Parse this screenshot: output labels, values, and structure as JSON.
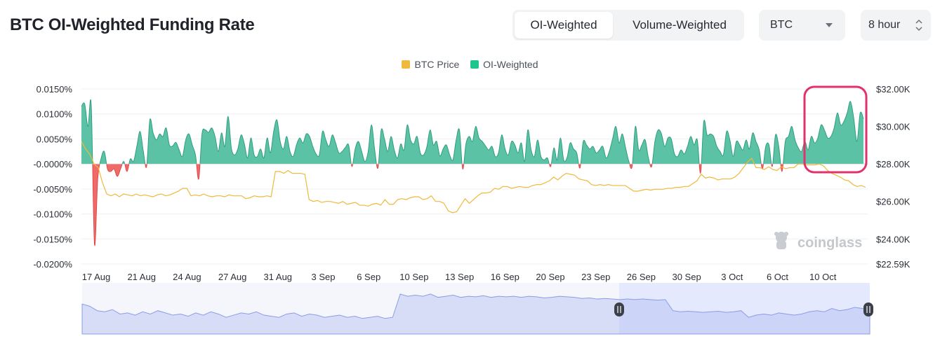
{
  "header": {
    "title": "BTC OI-Weighted Funding Rate",
    "tabs": [
      {
        "label": "OI-Weighted",
        "active": true
      },
      {
        "label": "Volume-Weighted",
        "active": false
      }
    ],
    "symbol_select": {
      "value": "BTC",
      "icon": "chevron-down-icon"
    },
    "interval_select": {
      "value": "8 hour",
      "icon": "up-down-stepper-icon"
    }
  },
  "legend": [
    {
      "label": "BTC Price",
      "color": "#f0b83c"
    },
    {
      "label": "OI-Weighted",
      "color": "#1dc78c"
    }
  ],
  "watermark": {
    "text": "coinglass",
    "icon": "coinglass-logo-icon"
  },
  "colors": {
    "positive_fill": "#5cc2a5",
    "positive_stroke": "#2f9e80",
    "negative_fill": "#f06a6a",
    "price_line": "#f0b83c",
    "highlight_box": "#e0336e",
    "navigator_fill": "#dde3fb",
    "navigator_line": "#8b9ce6"
  },
  "chart_data": {
    "type": "area",
    "xlabels": [
      "17 Aug",
      "21 Aug",
      "24 Aug",
      "27 Aug",
      "31 Aug",
      "3 Sep",
      "6 Sep",
      "10 Sep",
      "13 Sep",
      "16 Sep",
      "20 Sep",
      "23 Sep",
      "26 Sep",
      "30 Sep",
      "3 Oct",
      "6 Oct",
      "10 Oct"
    ],
    "y_left_ticks": [
      "0.0150%",
      "0.0100%",
      "0.0050%",
      "-0.0000%",
      "-0.0050%",
      "-0.0100%",
      "-0.0150%",
      "-0.0200%"
    ],
    "y_left_values": [
      0.015,
      0.01,
      0.005,
      0.0,
      -0.005,
      -0.01,
      -0.015,
      -0.02
    ],
    "y_right_ticks": [
      "$32.00K",
      "$30.00K",
      "$28.00K",
      "$26.00K",
      "$24.00K",
      "$22.59K"
    ],
    "y_right_values": [
      32000,
      30000,
      28000,
      26000,
      24000,
      22590
    ],
    "funding_series": {
      "name": "OI-Weighted",
      "values": [
        0.0115,
        0.012,
        0.0075,
        0.0118,
        -0.016,
        -0.003,
        0.001,
        0.0025,
        -0.001,
        -0.0015,
        -0.001,
        -0.0025,
        -0.001,
        0.0005,
        -0.0015,
        0.001,
        0.0005,
        0.0035,
        0.0065,
        0.0025,
        -0.0005,
        0.0088,
        0.0062,
        0.0048,
        0.006,
        0.0055,
        0.0072,
        0.0038,
        0.0036,
        0.0043,
        0.0028,
        0.0015,
        0.0048,
        0.006,
        0.0038,
        0.0018,
        -0.003,
        0.006,
        0.0068,
        0.0063,
        0.0072,
        0.0055,
        0.0025,
        0.0062,
        0.0035,
        0.0095,
        0.0032,
        0.0018,
        0.003,
        0.0058,
        0.004,
        0.0012,
        0.0052,
        0.0018,
        0.0015,
        0.003,
        0.0012,
        0.0052,
        0.0022,
        0.0065,
        0.0088,
        0.0045,
        0.003,
        0.0055,
        0.0025,
        0.0015,
        0.0038,
        0.0052,
        0.0042,
        0.006,
        0.0055,
        0.0035,
        0.002,
        0.0018,
        0.0065,
        0.0048,
        0.0035,
        0.0058,
        0.0042,
        0.0022,
        0.0025,
        0.0033,
        0.0038,
        -0.0005,
        0.003,
        0.0045,
        0.0025,
        0.0005,
        0.0025,
        0.0078,
        0.0028,
        -0.0008,
        0.0068,
        0.005,
        0.0025,
        0.0055,
        0.0028,
        0.0012,
        0.004,
        0.0028,
        0.0078,
        0.0048,
        0.004,
        0.0055,
        0.0022,
        0.0018,
        0.0034,
        0.0068,
        0.0038,
        0.0045,
        0.0016,
        0.003,
        0.0038,
        0.0018,
        0.0008,
        0.0048,
        0.0068,
        -0.001,
        0.004,
        0.0055,
        0.0045,
        0.0075,
        0.0052,
        0.0045,
        0.0036,
        0.0028,
        0.0035,
        0.0015,
        0.0022,
        0.0058,
        0.003,
        0.0018,
        0.0045,
        0.0038,
        0.0022,
        0.0042,
        0.0005,
        0.0068,
        0.0028,
        0.0015,
        0.0048,
        0.0015,
        0.0008,
        0.0012,
        -0.0005,
        0.0032,
        0.0008,
        0.0052,
        0.0008,
        0.0012,
        0.0042,
        0.003,
        0.0022,
        -0.0008,
        0.0045,
        0.0038,
        0.003,
        0.0035,
        0.0022,
        0.0028,
        0.0035,
        0.0012,
        0.0025,
        0.005,
        0.0075,
        0.0042,
        0.006,
        0.0032,
        0.0005,
        -0.0005,
        0.0075,
        0.0028,
        0.0038,
        0.0048,
        0.0012,
        -0.0005,
        0.0045,
        0.0068,
        0.006,
        0.0035,
        0.0052,
        0.005,
        0.002,
        0.0015,
        0.0028,
        0.002,
        0.0035,
        0.0055,
        0.0038,
        0.0048,
        -0.0018,
        0.0085,
        0.0058,
        0.006,
        0.0055,
        0.0035,
        0.0025,
        0.0018,
        0.0065,
        0.0048,
        0.0015,
        0.0045,
        0.0038,
        0.0028,
        0.0048,
        0.003,
        0.0062,
        0.0045,
        0.0028,
        -0.001,
        0.0035,
        0.0038,
        -0.0005,
        0.0058,
        0.0035,
        -0.0015,
        0.0045,
        0.0055,
        0.0075,
        0.0048,
        0.0032,
        0.0025,
        0.0045,
        0.0028,
        0.0055,
        0.0042,
        0.0052,
        0.0078,
        0.0068,
        0.0052,
        0.0055,
        0.0072,
        0.0102,
        0.0078,
        0.0085,
        0.0102,
        0.0125,
        0.0092,
        0.0045,
        0.0102,
        0.009
      ]
    },
    "price_series": {
      "name": "BTC Price",
      "values": [
        29200,
        28800,
        28500,
        28000,
        27800,
        27000,
        26400,
        26300,
        26400,
        26250,
        26400,
        26350,
        26300,
        26400,
        26300,
        26350,
        26300,
        26250,
        26350,
        26400,
        26300,
        26350,
        26450,
        26550,
        26700,
        26700,
        26300,
        26350,
        26300,
        26400,
        26300,
        26250,
        26300,
        26300,
        26250,
        26350,
        26300,
        26300,
        26300,
        26150,
        26200,
        26300,
        26250,
        26250,
        26300,
        26250,
        27600,
        27600,
        27500,
        27650,
        27500,
        27500,
        27500,
        27450,
        26100,
        26000,
        26050,
        25950,
        26000,
        26000,
        25950,
        25900,
        26000,
        25850,
        25900,
        25950,
        25800,
        25800,
        25750,
        25850,
        25900,
        25800,
        26100,
        25850,
        25850,
        26100,
        26150,
        26100,
        26200,
        26250,
        26250,
        26100,
        26150,
        26300,
        26000,
        26000,
        25900,
        25500,
        25400,
        25450,
        25800,
        26150,
        25900,
        26100,
        26300,
        26450,
        26450,
        26500,
        26700,
        26650,
        26800,
        26800,
        26700,
        26750,
        26800,
        26750,
        26750,
        26850,
        26900,
        26900,
        27000,
        27100,
        27300,
        27150,
        27350,
        27500,
        27450,
        27400,
        27200,
        27150,
        27100,
        26900,
        26850,
        26900,
        26850,
        26900,
        26850,
        26850,
        26850,
        26850,
        26700,
        26550,
        26550,
        26600,
        26650,
        26600,
        26650,
        26650,
        26650,
        26700,
        26700,
        26750,
        26750,
        26800,
        26800,
        26950,
        27100,
        27450,
        27250,
        27300,
        27250,
        27150,
        27200,
        27200,
        27200,
        27300,
        27500,
        27800,
        28100,
        28300,
        27800,
        27800,
        27700,
        27850,
        27700,
        27650,
        27850,
        27750,
        27800,
        27800,
        28000,
        28000,
        27950,
        27950,
        27950,
        28000,
        27900,
        27650,
        27500,
        27400,
        27300,
        27150,
        27100,
        26900,
        26800,
        26850,
        26750
      ]
    },
    "navigator": {
      "values": [
        28200,
        28000,
        27600,
        27500,
        27700,
        27300,
        27400,
        27200,
        27500,
        27300,
        27600,
        27400,
        27200,
        27300,
        27100,
        27400,
        27200,
        27500,
        27300,
        27000,
        27200,
        27400,
        27300,
        27500,
        27200,
        27100,
        27000,
        27300,
        27400,
        27100,
        27300,
        27200,
        27000,
        27100,
        27200,
        27000,
        27100,
        26900,
        27000,
        27100,
        26900,
        27000,
        29100,
        28900,
        29000,
        28900,
        29100,
        28800,
        28900,
        29000,
        28800,
        28900,
        28850,
        28950,
        28800,
        28900,
        28850,
        28900,
        28800,
        28900,
        28850,
        28750,
        28800,
        28900,
        28850,
        28800,
        28700,
        28750,
        28650,
        28700,
        28650,
        28600,
        28650,
        28600,
        28650,
        28600,
        28550,
        28600,
        27600,
        27500,
        27550,
        27500,
        27450,
        27500,
        27550,
        27450,
        27500,
        27600,
        27000,
        27200,
        27300,
        27200,
        27400,
        27300,
        27200,
        27300,
        27500,
        27600,
        27500,
        27800,
        27600,
        27700,
        27900,
        27800,
        27700
      ]
    }
  }
}
